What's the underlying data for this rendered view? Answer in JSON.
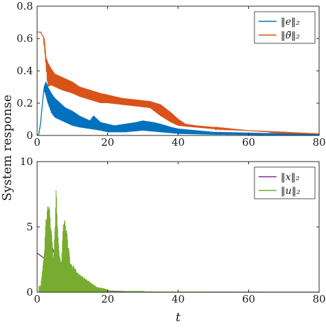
{
  "shared_ylabel": "System response",
  "chart_data": [
    {
      "type": "line",
      "xlabel": "",
      "xlim": [
        0,
        80
      ],
      "ylim": [
        0,
        0.8
      ],
      "xticks": [
        "0",
        "20",
        "40",
        "60",
        "80"
      ],
      "yticks": [
        "0",
        "0.2",
        "0.4",
        "0.6",
        "0.8"
      ],
      "grid": false,
      "legend_position": "top-right",
      "series": [
        {
          "name": "‖e‖₂",
          "color": "#0072bd",
          "upper": [
            [
              0,
              0
            ],
            [
              0.5,
              0.01
            ],
            [
              1,
              0.08
            ],
            [
              1.5,
              0.2
            ],
            [
              2,
              0.3
            ],
            [
              2.5,
              0.33
            ],
            [
              3,
              0.3
            ],
            [
              4,
              0.26
            ],
            [
              5,
              0.23
            ],
            [
              6,
              0.21
            ],
            [
              8,
              0.17
            ],
            [
              10,
              0.15
            ],
            [
              12,
              0.12
            ],
            [
              14,
              0.1
            ],
            [
              15,
              0.09
            ],
            [
              16,
              0.12
            ],
            [
              17,
              0.1
            ],
            [
              18,
              0.08
            ],
            [
              20,
              0.07
            ],
            [
              22,
              0.06
            ],
            [
              25,
              0.07
            ],
            [
              28,
              0.08
            ],
            [
              30,
              0.09
            ],
            [
              33,
              0.08
            ],
            [
              35,
              0.07
            ],
            [
              38,
              0.05
            ],
            [
              40,
              0.04
            ],
            [
              45,
              0.03
            ],
            [
              50,
              0.02
            ],
            [
              60,
              0.015
            ],
            [
              70,
              0.01
            ],
            [
              80,
              0.005
            ]
          ],
          "lower": [
            [
              0,
              0
            ],
            [
              2,
              0.28
            ],
            [
              3,
              0.2
            ],
            [
              4,
              0.14
            ],
            [
              5,
              0.11
            ],
            [
              6,
              0.1
            ],
            [
              8,
              0.08
            ],
            [
              10,
              0.06
            ],
            [
              12,
              0.05
            ],
            [
              15,
              0.04
            ],
            [
              18,
              0.03
            ],
            [
              20,
              0.02
            ],
            [
              25,
              0.02
            ],
            [
              30,
              0.03
            ],
            [
              35,
              0.02
            ],
            [
              40,
              0.01
            ],
            [
              50,
              0.005
            ],
            [
              80,
              0
            ]
          ]
        },
        {
          "name": "‖θ̃‖₂",
          "color": "#d95319",
          "upper": [
            [
              0,
              0.64
            ],
            [
              1,
              0.64
            ],
            [
              2,
              0.6
            ],
            [
              2.5,
              0.48
            ],
            [
              3,
              0.45
            ],
            [
              4,
              0.41
            ],
            [
              5,
              0.38
            ],
            [
              7,
              0.36
            ],
            [
              10,
              0.33
            ],
            [
              12,
              0.3
            ],
            [
              15,
              0.28
            ],
            [
              18,
              0.26
            ],
            [
              20,
              0.25
            ],
            [
              24,
              0.23
            ],
            [
              28,
              0.22
            ],
            [
              32,
              0.21
            ],
            [
              35,
              0.19
            ],
            [
              38,
              0.14
            ],
            [
              40,
              0.1
            ],
            [
              42,
              0.07
            ],
            [
              45,
              0.06
            ],
            [
              50,
              0.05
            ],
            [
              55,
              0.04
            ],
            [
              60,
              0.03
            ],
            [
              70,
              0.02
            ],
            [
              80,
              0.01
            ]
          ],
          "lower": [
            [
              0,
              0.64
            ],
            [
              1,
              0.63
            ],
            [
              2,
              0.55
            ],
            [
              3,
              0.3
            ],
            [
              4,
              0.31
            ],
            [
              5,
              0.3
            ],
            [
              7,
              0.28
            ],
            [
              10,
              0.26
            ],
            [
              12,
              0.24
            ],
            [
              15,
              0.22
            ],
            [
              18,
              0.2
            ],
            [
              20,
              0.2
            ],
            [
              24,
              0.19
            ],
            [
              28,
              0.18
            ],
            [
              32,
              0.17
            ],
            [
              35,
              0.12
            ],
            [
              38,
              0.08
            ],
            [
              40,
              0.06
            ],
            [
              45,
              0.05
            ],
            [
              50,
              0.04
            ],
            [
              60,
              0.03
            ],
            [
              70,
              0.015
            ],
            [
              80,
              0.01
            ]
          ]
        }
      ]
    },
    {
      "type": "line",
      "xlabel": "t",
      "xlim": [
        0,
        80
      ],
      "ylim": [
        0,
        10
      ],
      "xticks": [
        "0",
        "20",
        "40",
        "60",
        "80"
      ],
      "yticks": [
        "0",
        "5",
        "10"
      ],
      "grid": false,
      "legend_position": "top-right",
      "series": [
        {
          "name": "‖x‖₂",
          "color": "#7e2f8e",
          "points": [
            [
              0,
              3
            ],
            [
              1,
              2.8
            ],
            [
              2,
              2.6
            ],
            [
              2.5,
              3.8
            ],
            [
              3,
              4.4
            ],
            [
              4,
              3.6
            ],
            [
              5,
              2.9
            ],
            [
              6,
              2.4
            ],
            [
              7,
              2.2
            ],
            [
              8,
              1.8
            ],
            [
              9,
              1.5
            ],
            [
              10,
              1.2
            ],
            [
              11,
              1.0
            ],
            [
              12,
              0.8
            ],
            [
              14,
              0.5
            ],
            [
              16,
              0.3
            ],
            [
              18,
              0.2
            ],
            [
              20,
              0.1
            ],
            [
              25,
              0.04
            ],
            [
              30,
              0.02
            ],
            [
              40,
              0.01
            ],
            [
              80,
              0
            ]
          ]
        },
        {
          "name": "‖u‖₂",
          "color": "#77ac30",
          "peaks": [
            [
              1,
              0.5
            ],
            [
              2,
              3
            ],
            [
              2.5,
              5.8
            ],
            [
              3.3,
              7.1
            ],
            [
              4,
              5
            ],
            [
              4.7,
              2.5
            ],
            [
              5.4,
              8.1
            ],
            [
              6,
              4
            ],
            [
              6.8,
              2
            ],
            [
              7.5,
              5.8
            ],
            [
              8.2,
              5.2
            ],
            [
              9.5,
              2.2
            ],
            [
              10.5,
              2
            ],
            [
              11.5,
              1.5
            ],
            [
              13,
              1.2
            ],
            [
              15,
              0.8
            ],
            [
              17,
              0.4
            ],
            [
              19,
              0.3
            ],
            [
              21,
              0.1
            ],
            [
              25,
              0.03
            ]
          ]
        }
      ]
    }
  ]
}
